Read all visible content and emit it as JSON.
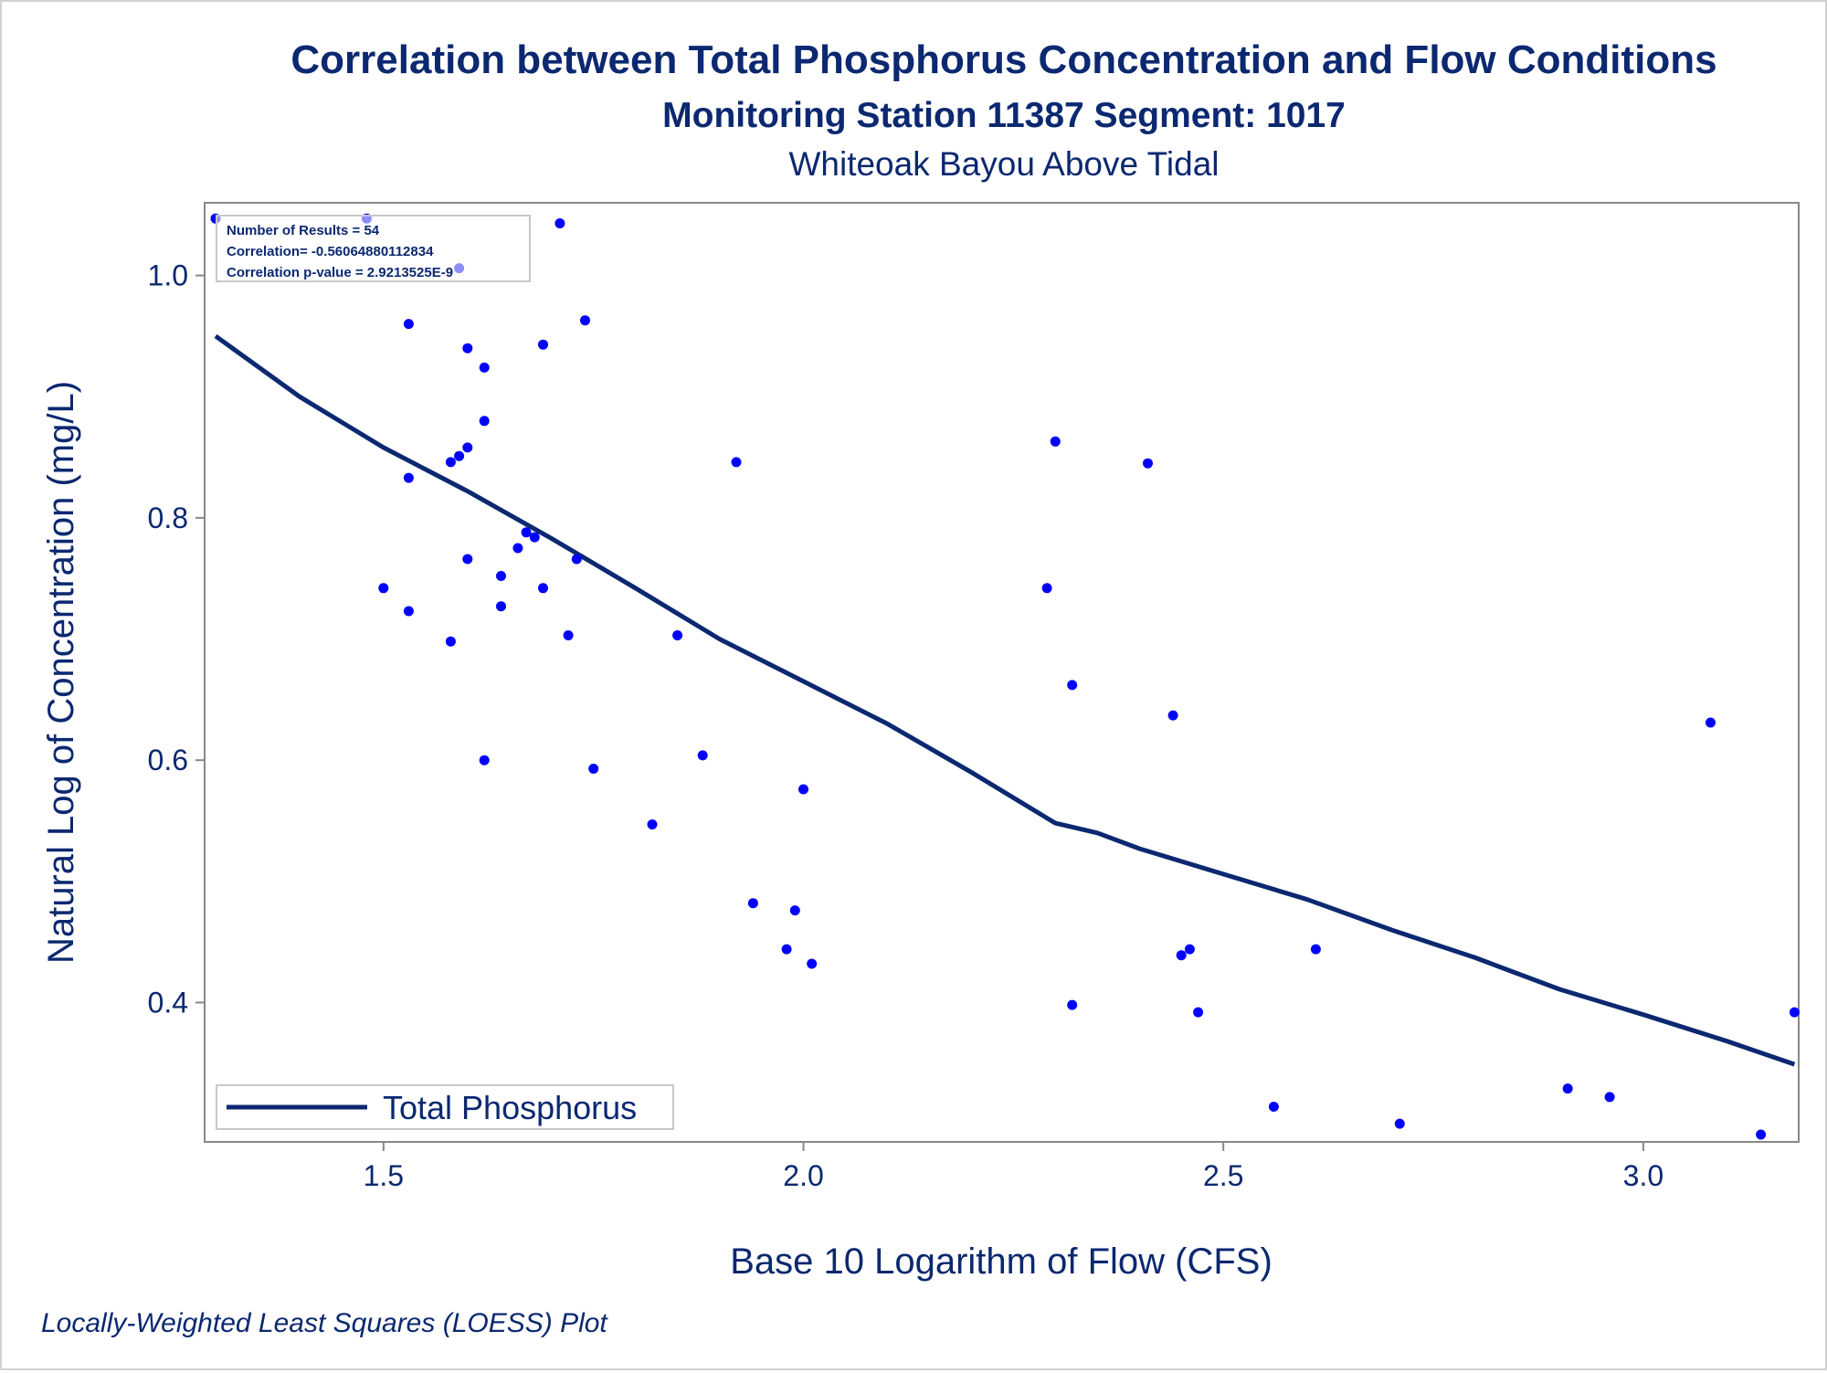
{
  "chart_data": {
    "type": "scatter",
    "title": "Correlation between Total Phosphorus Concentration and Flow Conditions",
    "subtitle": "Monitoring Station 11387 Segment: 1017",
    "subtitle2": "Whiteoak Bayou Above Tidal",
    "xlabel": "Base 10 Logarithm of Flow (CFS)",
    "ylabel": "Natural Log of Concentration (mg/L)",
    "footnote": "Locally-Weighted Least Squares (LOESS) Plot",
    "xlim": [
      1.287,
      3.185
    ],
    "ylim": [
      0.285,
      1.06
    ],
    "xticks": [
      1.5,
      2.0,
      2.5,
      3.0
    ],
    "xtick_labels": [
      "1.5",
      "2.0",
      "2.5",
      "3.0"
    ],
    "yticks": [
      0.4,
      0.6,
      0.8,
      1.0
    ],
    "ytick_labels": [
      "0.4",
      "0.6",
      "0.8",
      "1.0"
    ],
    "stats": {
      "line1": "Number of Results = 54",
      "line2": "Correlation= -0.56064880112834",
      "line3": "Correlation p-value = 2.9213525E-9"
    },
    "legend": {
      "position": "bottom-left",
      "label": "Total Phosphorus"
    },
    "colors": {
      "points": "#0000ff",
      "line": "#0b2870",
      "text": "#0b2870",
      "frame": "#888888"
    },
    "points": [
      {
        "x": 1.3,
        "y": 1.047
      },
      {
        "x": 1.48,
        "y": 1.047
      },
      {
        "x": 1.71,
        "y": 1.043
      },
      {
        "x": 1.59,
        "y": 1.006
      },
      {
        "x": 1.53,
        "y": 0.96
      },
      {
        "x": 1.74,
        "y": 0.963
      },
      {
        "x": 1.69,
        "y": 0.943
      },
      {
        "x": 1.6,
        "y": 0.94
      },
      {
        "x": 1.62,
        "y": 0.924
      },
      {
        "x": 1.62,
        "y": 0.88
      },
      {
        "x": 1.6,
        "y": 0.858
      },
      {
        "x": 1.59,
        "y": 0.851
      },
      {
        "x": 1.58,
        "y": 0.846
      },
      {
        "x": 1.53,
        "y": 0.833
      },
      {
        "x": 1.92,
        "y": 0.846
      },
      {
        "x": 1.67,
        "y": 0.788
      },
      {
        "x": 1.68,
        "y": 0.784
      },
      {
        "x": 1.66,
        "y": 0.775
      },
      {
        "x": 1.73,
        "y": 0.766
      },
      {
        "x": 1.6,
        "y": 0.766
      },
      {
        "x": 1.64,
        "y": 0.752
      },
      {
        "x": 1.5,
        "y": 0.742
      },
      {
        "x": 1.69,
        "y": 0.742
      },
      {
        "x": 1.64,
        "y": 0.727
      },
      {
        "x": 1.53,
        "y": 0.723
      },
      {
        "x": 1.72,
        "y": 0.703
      },
      {
        "x": 1.85,
        "y": 0.703
      },
      {
        "x": 1.58,
        "y": 0.698
      },
      {
        "x": 1.62,
        "y": 0.6
      },
      {
        "x": 1.88,
        "y": 0.604
      },
      {
        "x": 1.75,
        "y": 0.593
      },
      {
        "x": 2.0,
        "y": 0.576
      },
      {
        "x": 1.82,
        "y": 0.547
      },
      {
        "x": 1.94,
        "y": 0.482
      },
      {
        "x": 1.99,
        "y": 0.476
      },
      {
        "x": 1.98,
        "y": 0.444
      },
      {
        "x": 2.01,
        "y": 0.432
      },
      {
        "x": 2.3,
        "y": 0.863
      },
      {
        "x": 2.41,
        "y": 0.845
      },
      {
        "x": 2.29,
        "y": 0.742
      },
      {
        "x": 2.32,
        "y": 0.662
      },
      {
        "x": 2.44,
        "y": 0.637
      },
      {
        "x": 2.32,
        "y": 0.398
      },
      {
        "x": 2.45,
        "y": 0.439
      },
      {
        "x": 2.46,
        "y": 0.444
      },
      {
        "x": 2.47,
        "y": 0.392
      },
      {
        "x": 2.61,
        "y": 0.444
      },
      {
        "x": 2.56,
        "y": 0.314
      },
      {
        "x": 2.71,
        "y": 0.3
      },
      {
        "x": 2.91,
        "y": 0.329
      },
      {
        "x": 2.96,
        "y": 0.322
      },
      {
        "x": 3.08,
        "y": 0.631
      },
      {
        "x": 3.14,
        "y": 0.291
      },
      {
        "x": 3.18,
        "y": 0.392
      }
    ],
    "loess": [
      {
        "x": 1.3,
        "y": 0.95
      },
      {
        "x": 1.4,
        "y": 0.9
      },
      {
        "x": 1.5,
        "y": 0.858
      },
      {
        "x": 1.6,
        "y": 0.822
      },
      {
        "x": 1.7,
        "y": 0.783
      },
      {
        "x": 1.8,
        "y": 0.742
      },
      {
        "x": 1.9,
        "y": 0.7
      },
      {
        "x": 2.0,
        "y": 0.665
      },
      {
        "x": 2.1,
        "y": 0.63
      },
      {
        "x": 2.2,
        "y": 0.59
      },
      {
        "x": 2.3,
        "y": 0.548
      },
      {
        "x": 2.35,
        "y": 0.54
      },
      {
        "x": 2.4,
        "y": 0.527
      },
      {
        "x": 2.5,
        "y": 0.506
      },
      {
        "x": 2.6,
        "y": 0.485
      },
      {
        "x": 2.7,
        "y": 0.46
      },
      {
        "x": 2.8,
        "y": 0.437
      },
      {
        "x": 2.9,
        "y": 0.411
      },
      {
        "x": 3.0,
        "y": 0.39
      },
      {
        "x": 3.1,
        "y": 0.368
      },
      {
        "x": 3.18,
        "y": 0.349
      }
    ]
  }
}
